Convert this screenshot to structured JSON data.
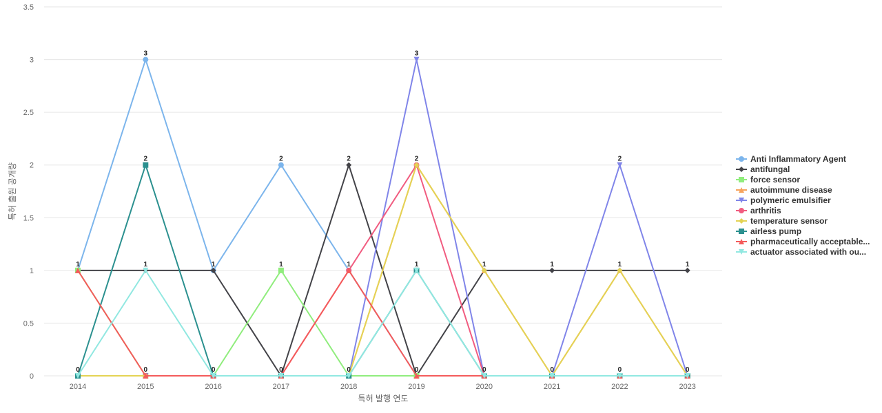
{
  "chart_data": {
    "type": "line",
    "xlabel": "특허 발행 연도",
    "ylabel": "특허 출원 공개량",
    "ylim": [
      0,
      3.5
    ],
    "y_ticks": [
      "0",
      "0.5",
      "1",
      "1.5",
      "2",
      "2.5",
      "3",
      "3.5"
    ],
    "x": [
      "2014",
      "2015",
      "2016",
      "2017",
      "2018",
      "2019",
      "2020",
      "2021",
      "2022",
      "2023"
    ],
    "grid": true,
    "legend_position": "right",
    "series": [
      {
        "name": "Anti Inflammatory Agent",
        "color": "#7cb5ec",
        "marker": "circle",
        "values": [
          1,
          3,
          1,
          2,
          1,
          0,
          0,
          0,
          0,
          0
        ]
      },
      {
        "name": "antifungal",
        "color": "#434348",
        "marker": "diamond",
        "values": [
          1,
          1,
          1,
          0,
          2,
          0,
          1,
          1,
          1,
          1
        ]
      },
      {
        "name": "force sensor",
        "color": "#90ed7d",
        "marker": "square",
        "values": [
          1,
          0,
          0,
          1,
          0,
          0,
          0,
          0,
          0,
          0
        ]
      },
      {
        "name": "autoimmune disease",
        "color": "#f7a35c",
        "marker": "triangle",
        "values": [
          0,
          0,
          0,
          0,
          0,
          2,
          1,
          0,
          1,
          0
        ]
      },
      {
        "name": "polymeric emulsifier",
        "color": "#8085e9",
        "marker": "triangle-down",
        "values": [
          0,
          0,
          0,
          0,
          0,
          3,
          0,
          0,
          2,
          0
        ]
      },
      {
        "name": "arthritis",
        "color": "#f15c80",
        "marker": "circle",
        "values": [
          0,
          0,
          0,
          0,
          1,
          2,
          0,
          0,
          0,
          0
        ]
      },
      {
        "name": "temperature sensor",
        "color": "#e4d354",
        "marker": "diamond",
        "values": [
          0,
          0,
          0,
          0,
          0,
          2,
          1,
          0,
          1,
          0
        ]
      },
      {
        "name": "airless pump",
        "color": "#2b908f",
        "marker": "square",
        "values": [
          0,
          2,
          0,
          0,
          0,
          1,
          0,
          0,
          0,
          0
        ]
      },
      {
        "name": "pharmaceutically acceptable...",
        "color": "#f45b5b",
        "marker": "triangle",
        "values": [
          1,
          0,
          0,
          0,
          1,
          0,
          0,
          0,
          0,
          0
        ]
      },
      {
        "name": "actuator associated with ou...",
        "color": "#91e8e1",
        "marker": "triangle-down",
        "values": [
          0,
          1,
          0,
          0,
          0,
          1,
          0,
          0,
          0,
          0
        ]
      }
    ],
    "data_labels": [
      {
        "x": "2014",
        "text": "1",
        "value": 1
      },
      {
        "x": "2014",
        "text": "0",
        "value": 0
      },
      {
        "x": "2015",
        "text": "3",
        "value": 3
      },
      {
        "x": "2015",
        "text": "2",
        "value": 2
      },
      {
        "x": "2015",
        "text": "1",
        "value": 1
      },
      {
        "x": "2015",
        "text": "0",
        "value": 0
      },
      {
        "x": "2016",
        "text": "1",
        "value": 1
      },
      {
        "x": "2016",
        "text": "0",
        "value": 0
      },
      {
        "x": "2017",
        "text": "2",
        "value": 2
      },
      {
        "x": "2017",
        "text": "1",
        "value": 1
      },
      {
        "x": "2017",
        "text": "0",
        "value": 0
      },
      {
        "x": "2018",
        "text": "2",
        "value": 2
      },
      {
        "x": "2018",
        "text": "1",
        "value": 1
      },
      {
        "x": "2018",
        "text": "0",
        "value": 0
      },
      {
        "x": "2019",
        "text": "3",
        "value": 3
      },
      {
        "x": "2019",
        "text": "2",
        "value": 2
      },
      {
        "x": "2019",
        "text": "1",
        "value": 1
      },
      {
        "x": "2019",
        "text": "0",
        "value": 0
      },
      {
        "x": "2020",
        "text": "1",
        "value": 1
      },
      {
        "x": "2020",
        "text": "0",
        "value": 0
      },
      {
        "x": "2021",
        "text": "1",
        "value": 1
      },
      {
        "x": "2021",
        "text": "0",
        "value": 0
      },
      {
        "x": "2022",
        "text": "2",
        "value": 2
      },
      {
        "x": "2022",
        "text": "1",
        "value": 1
      },
      {
        "x": "2022",
        "text": "0",
        "value": 0
      },
      {
        "x": "2023",
        "text": "1",
        "value": 1
      },
      {
        "x": "2023",
        "text": "0",
        "value": 0
      }
    ]
  }
}
